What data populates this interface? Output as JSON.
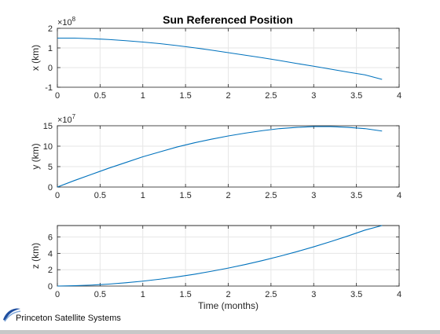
{
  "figure": {
    "title": "Sun Referenced Position",
    "xlabel": "Time (months)",
    "logo_text": "Princeton Satellite Systems",
    "line_color": "#0072bd"
  },
  "chart_data": [
    {
      "type": "line",
      "ylabel": "x (km)",
      "multiplier_base": "×10",
      "multiplier_exp": "8",
      "xlim": [
        0,
        4
      ],
      "ylim": [
        -1,
        2
      ],
      "xticks": [
        0,
        0.5,
        1,
        1.5,
        2,
        2.5,
        3,
        3.5,
        4
      ],
      "xtick_labels": [
        "0",
        "0.5",
        "1",
        "1.5",
        "2",
        "2.5",
        "3",
        "3.5",
        "4"
      ],
      "yticks": [
        -1,
        0,
        1,
        2
      ],
      "ytick_labels": [
        "-1",
        "0",
        "1",
        "2"
      ],
      "grid": true,
      "series": [
        {
          "x": [
            0,
            0.2,
            0.4,
            0.6,
            0.8,
            1.0,
            1.2,
            1.4,
            1.6,
            1.8,
            2.0,
            2.2,
            2.4,
            2.6,
            2.8,
            3.0,
            3.2,
            3.4,
            3.6,
            3.8
          ],
          "values": [
            1.5,
            1.5,
            1.47,
            1.43,
            1.37,
            1.3,
            1.22,
            1.12,
            1.01,
            0.89,
            0.76,
            0.63,
            0.5,
            0.36,
            0.21,
            0.07,
            -0.08,
            -0.23,
            -0.37,
            -0.6
          ]
        }
      ]
    },
    {
      "type": "line",
      "ylabel": "y (km)",
      "multiplier_base": "×10",
      "multiplier_exp": "7",
      "xlim": [
        0,
        4
      ],
      "ylim": [
        0,
        15
      ],
      "xticks": [
        0,
        0.5,
        1,
        1.5,
        2,
        2.5,
        3,
        3.5,
        4
      ],
      "xtick_labels": [
        "0",
        "0.5",
        "1",
        "1.5",
        "2",
        "2.5",
        "3",
        "3.5",
        "4"
      ],
      "yticks": [
        0,
        5,
        10,
        15
      ],
      "ytick_labels": [
        "0",
        "5",
        "10",
        "15"
      ],
      "grid": true,
      "series": [
        {
          "x": [
            0,
            0.2,
            0.4,
            0.6,
            0.8,
            1.0,
            1.2,
            1.4,
            1.6,
            1.8,
            2.0,
            2.2,
            2.4,
            2.6,
            2.8,
            3.0,
            3.2,
            3.4,
            3.6,
            3.8
          ],
          "values": [
            0.0,
            1.6,
            3.1,
            4.6,
            6.0,
            7.4,
            8.6,
            9.8,
            10.8,
            11.7,
            12.5,
            13.2,
            13.8,
            14.3,
            14.6,
            14.8,
            14.8,
            14.6,
            14.3,
            13.7
          ]
        }
      ]
    },
    {
      "type": "line",
      "ylabel": "z (km)",
      "xlim": [
        0,
        4
      ],
      "ylim": [
        0,
        7.4
      ],
      "xticks": [
        0,
        0.5,
        1,
        1.5,
        2,
        2.5,
        3,
        3.5,
        4
      ],
      "xtick_labels": [
        "0",
        "0.5",
        "1",
        "1.5",
        "2",
        "2.5",
        "3",
        "3.5",
        "4"
      ],
      "yticks": [
        0,
        2,
        4,
        6
      ],
      "ytick_labels": [
        "0",
        "2",
        "4",
        "6"
      ],
      "grid": true,
      "series": [
        {
          "x": [
            0,
            0.2,
            0.4,
            0.6,
            0.8,
            1.0,
            1.2,
            1.4,
            1.6,
            1.8,
            2.0,
            2.2,
            2.4,
            2.6,
            2.8,
            3.0,
            3.2,
            3.4,
            3.6,
            3.8
          ],
          "values": [
            0.0,
            0.04,
            0.12,
            0.24,
            0.4,
            0.6,
            0.84,
            1.12,
            1.44,
            1.8,
            2.2,
            2.64,
            3.12,
            3.64,
            4.2,
            4.8,
            5.44,
            6.12,
            6.84,
            7.4
          ]
        }
      ]
    }
  ]
}
